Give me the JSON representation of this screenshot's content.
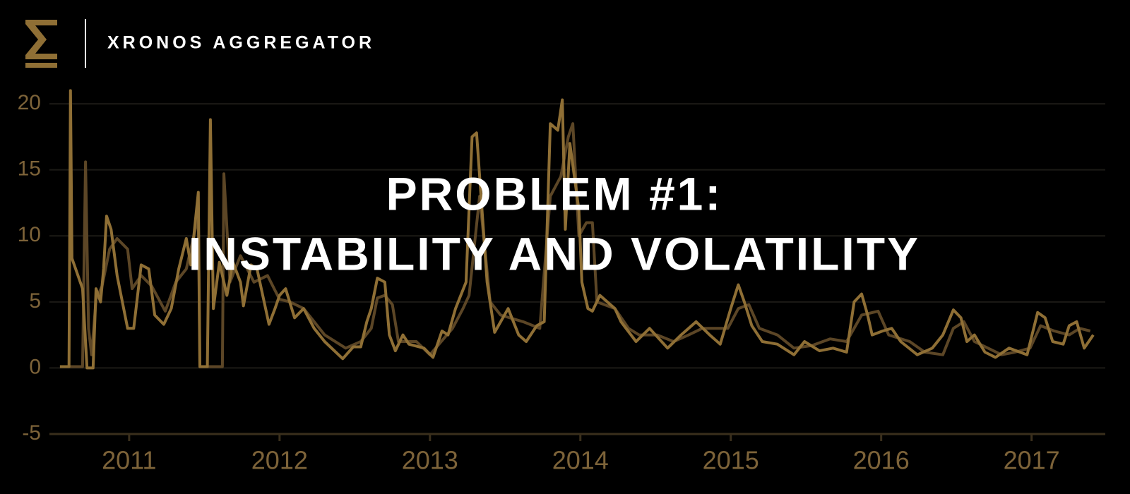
{
  "header": {
    "brand": "XRONOS AGGREGATOR"
  },
  "chart_data": {
    "type": "line",
    "title": "PROBLEM #1:",
    "subtitle": "INSTABILITY AND VOLATILITY",
    "xlim": [
      2010.47,
      2017.49
    ],
    "xticks": [
      2011,
      2012,
      2013,
      2014,
      2015,
      2016,
      2017
    ],
    "ylim": [
      -5,
      21.5
    ],
    "yticks": [
      -5,
      0,
      5,
      10,
      15,
      20
    ],
    "grid": true,
    "series": [
      {
        "color": "#8f6f35",
        "x": [
          2010.54,
          2010.6,
          2010.61,
          2010.62,
          2010.69,
          2010.72,
          2010.76,
          2010.78,
          2010.81,
          2010.83,
          2010.85,
          2010.88,
          2010.92,
          2010.99,
          2011.03,
          2011.08,
          2011.13,
          2011.17,
          2011.23,
          2011.28,
          2011.33,
          2011.38,
          2011.41,
          2011.46,
          2011.47,
          2011.52,
          2011.54,
          2011.56,
          2011.6,
          2011.65,
          2011.69,
          2011.74,
          2011.76,
          2011.81,
          2011.85,
          2011.93,
          2011.97,
          2012.0,
          2012.04,
          2012.1,
          2012.16,
          2012.23,
          2012.3,
          2012.42,
          2012.49,
          2012.54,
          2012.58,
          2012.61,
          2012.65,
          2012.7,
          2012.73,
          2012.77,
          2012.82,
          2012.86,
          2012.96,
          2013.02,
          2013.08,
          2013.12,
          2013.17,
          2013.24,
          2013.28,
          2013.31,
          2013.38,
          2013.43,
          2013.47,
          2013.52,
          2013.59,
          2013.64,
          2013.71,
          2013.76,
          2013.8,
          2013.85,
          2013.88,
          2013.9,
          2013.93,
          2013.99,
          2014.01,
          2014.05,
          2014.08,
          2014.13,
          2014.23,
          2014.27,
          2014.37,
          2014.46,
          2014.58,
          2014.67,
          2014.77,
          2014.86,
          2014.93,
          2015.0,
          2015.05,
          2015.09,
          2015.14,
          2015.21,
          2015.31,
          2015.42,
          2015.49,
          2015.59,
          2015.68,
          2015.77,
          2015.82,
          2015.87,
          2015.91,
          2015.94,
          2016.01,
          2016.07,
          2016.13,
          2016.24,
          2016.34,
          2016.41,
          2016.48,
          2016.53,
          2016.57,
          2016.62,
          2016.69,
          2016.76,
          2016.85,
          2016.97,
          2017.04,
          2017.09,
          2017.14,
          2017.21,
          2017.25,
          2017.3,
          2017.35,
          2017.41
        ],
        "values": [
          0.1,
          0.1,
          21,
          8.3,
          6,
          0,
          0,
          6,
          5,
          7.5,
          11.5,
          10.5,
          7,
          3,
          3,
          7.8,
          7.5,
          4,
          3.3,
          4.5,
          7.5,
          9.8,
          7.8,
          13.3,
          0.1,
          0.1,
          18.8,
          4.5,
          8,
          5.5,
          8,
          6.5,
          4.7,
          7.8,
          7.5,
          3.3,
          4.5,
          5.5,
          6,
          3.8,
          4.5,
          3,
          2,
          0.7,
          1.6,
          1.6,
          3.5,
          4.5,
          6.8,
          6.5,
          2.5,
          1.3,
          2.5,
          1.8,
          1.5,
          0.8,
          2.8,
          2.5,
          4.5,
          6.5,
          17.5,
          17.8,
          6.5,
          2.7,
          3.5,
          4.5,
          2.5,
          2,
          3.2,
          3.5,
          18.5,
          18,
          20.3,
          10.5,
          17,
          12,
          6.5,
          4.5,
          4.3,
          5.5,
          4.5,
          3.5,
          2,
          3,
          1.5,
          2.5,
          3.5,
          2.5,
          1.8,
          4.5,
          6.3,
          5,
          3.2,
          2,
          1.8,
          1,
          2,
          1.3,
          1.5,
          1.2,
          5,
          5.6,
          4,
          2.5,
          2.8,
          3,
          2,
          1,
          1.5,
          2.5,
          4.4,
          3.8,
          2,
          2.5,
          1.2,
          0.8,
          1.5,
          1,
          4.2,
          3.8,
          2,
          1.8,
          3.2,
          3.5,
          1.5,
          2.5
        ]
      },
      {
        "color": "#5c4626",
        "x": [
          2010.54,
          2010.69,
          2010.71,
          2010.73,
          2010.75,
          2010.78,
          2010.82,
          2010.87,
          2010.92,
          2010.99,
          2011.02,
          2011.08,
          2011.15,
          2011.24,
          2011.31,
          2011.38,
          2011.46,
          2011.47,
          2011.62,
          2011.63,
          2011.67,
          2011.74,
          2011.83,
          2011.92,
          2012.0,
          2012.07,
          2012.16,
          2012.23,
          2012.3,
          2012.44,
          2012.54,
          2012.61,
          2012.65,
          2012.7,
          2012.75,
          2012.79,
          2012.91,
          2013.0,
          2013.15,
          2013.22,
          2013.26,
          2013.33,
          2013.4,
          2013.47,
          2013.62,
          2013.73,
          2013.8,
          2013.87,
          2013.92,
          2013.95,
          2013.99,
          2014.04,
          2014.08,
          2014.11,
          2014.23,
          2014.32,
          2014.39,
          2014.51,
          2014.62,
          2014.72,
          2014.81,
          2014.88,
          2014.98,
          2015.05,
          2015.12,
          2015.19,
          2015.31,
          2015.42,
          2015.54,
          2015.66,
          2015.77,
          2015.87,
          2015.98,
          2016.05,
          2016.19,
          2016.29,
          2016.41,
          2016.48,
          2016.55,
          2016.62,
          2016.71,
          2016.8,
          2016.89,
          2016.99,
          2017.06,
          2017.15,
          2017.25,
          2017.32,
          2017.39
        ],
        "values": [
          0.1,
          0.1,
          15.6,
          3,
          1,
          5.2,
          6.2,
          9,
          9.8,
          9,
          6,
          7,
          6.2,
          4.3,
          6.5,
          7.5,
          11.5,
          0.1,
          0.1,
          14.7,
          6.5,
          8.5,
          6.5,
          7,
          5.2,
          5,
          4.5,
          3.5,
          2.5,
          1.5,
          2,
          3,
          5.3,
          5.5,
          4.8,
          2,
          2,
          1,
          3,
          4.5,
          5.5,
          13,
          5,
          4,
          3.5,
          3,
          13,
          14.5,
          17.5,
          18.5,
          10,
          11,
          11,
          5,
          4.5,
          3,
          2.5,
          2.5,
          2,
          2.5,
          3,
          3,
          3,
          4.5,
          4.8,
          3,
          2.5,
          1.5,
          1.7,
          2.2,
          2,
          4,
          4.3,
          2.5,
          2,
          1.2,
          1,
          3,
          3.5,
          2,
          1.5,
          1,
          1.2,
          1.5,
          3.2,
          2.8,
          2.5,
          3,
          2.8
        ]
      }
    ]
  }
}
